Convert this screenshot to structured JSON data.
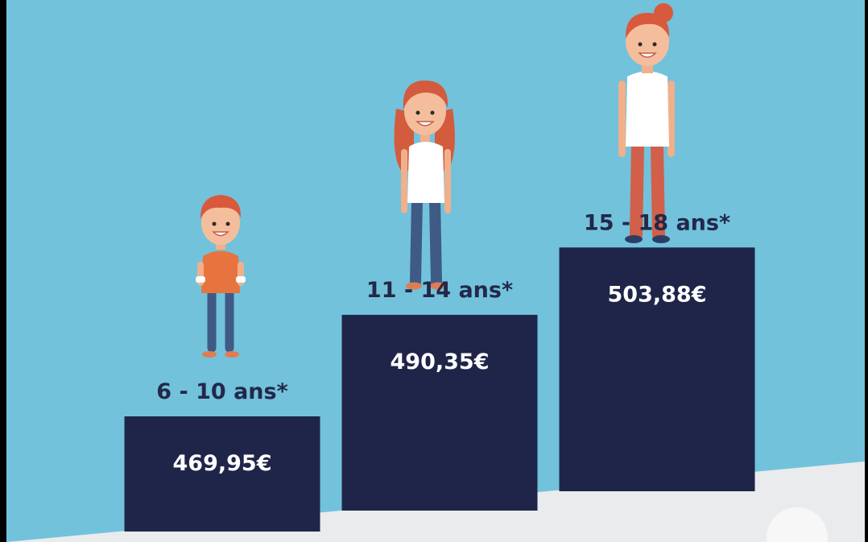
{
  "colors": {
    "background": "#72c2dc",
    "bar": "#1f2549",
    "ground": "#eaebed",
    "label": "#23284a",
    "value_text": "#ffffff"
  },
  "chart_data": {
    "type": "bar",
    "categories": [
      "6 - 10 ans*",
      "11 - 14 ans*",
      "15 - 18 ans*"
    ],
    "values": [
      469.95,
      490.35,
      503.88
    ],
    "value_labels": [
      "469,95€",
      "490,35€",
      "503,88€"
    ],
    "title": "",
    "xlabel": "",
    "ylabel": "",
    "grid": false,
    "legend": "none",
    "decorations": [
      "boy-illustration",
      "girl-illustration",
      "teen-illustration"
    ]
  }
}
